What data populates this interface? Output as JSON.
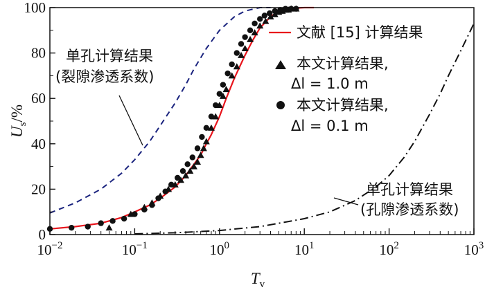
{
  "chart_data": {
    "type": "line",
    "xscale": "log",
    "xlim": [
      0.01,
      1000
    ],
    "ylim": [
      0,
      100
    ],
    "grid": false,
    "legend_position": "upper-right",
    "x_ticks": [
      {
        "value": 0.01,
        "base": "10",
        "exp": "−2"
      },
      {
        "value": 0.1,
        "base": "10",
        "exp": "−1"
      },
      {
        "value": 1,
        "base": "10",
        "exp": "0"
      },
      {
        "value": 10,
        "base": "10",
        "exp": "1"
      },
      {
        "value": 100,
        "base": "10",
        "exp": "2"
      },
      {
        "value": 1000,
        "base": "10",
        "exp": "3"
      }
    ],
    "y_ticks": [
      0,
      20,
      40,
      60,
      80,
      100
    ],
    "xlabel": {
      "main": "T",
      "sub": "v"
    },
    "ylabel": {
      "main": "U",
      "sub": "s",
      "suffix": "/%"
    },
    "series": [
      {
        "name": "文献 [15] 计算结果",
        "style": "solid",
        "color": "#e8141c",
        "marker": "none",
        "x": [
          0.01,
          0.02,
          0.04,
          0.07,
          0.1,
          0.15,
          0.2,
          0.3,
          0.4,
          0.5,
          0.6,
          0.7,
          0.8,
          1.0,
          1.2,
          1.5,
          2.0,
          2.5,
          3.0,
          4.0,
          5.0,
          7.0,
          10.0,
          13.0
        ],
        "y": [
          2.5,
          3.5,
          5.0,
          7.5,
          10.0,
          13.0,
          16.0,
          21.0,
          26.0,
          31.0,
          35.0,
          40.0,
          44.0,
          52.0,
          60.0,
          69.0,
          79.0,
          86.0,
          91.0,
          96.0,
          98.5,
          99.7,
          100,
          100
        ]
      },
      {
        "name": "本文计算结果,",
        "name_line2": "Δl = 1.0 m",
        "style": "none",
        "color": "#111111",
        "marker": "triangle",
        "x": [
          0.05,
          0.09,
          0.13,
          0.16,
          0.2,
          0.25,
          0.3,
          0.35,
          0.4,
          0.45,
          0.5,
          0.55,
          0.6,
          0.65,
          0.7,
          0.8,
          0.9,
          1.0,
          1.1,
          1.2,
          1.4,
          1.6,
          1.8,
          2.0,
          2.3,
          2.6,
          3.0,
          3.5,
          4.0,
          4.5,
          5.0,
          5.5,
          6.0,
          6.5,
          7.0,
          8.0
        ],
        "y": [
          3,
          9,
          12,
          14,
          17,
          20,
          22,
          24,
          26,
          28,
          30,
          32,
          35,
          38,
          41,
          47,
          52,
          57,
          61,
          64,
          70,
          74,
          79,
          82,
          86,
          89,
          92,
          94,
          96,
          97,
          98,
          98.5,
          99,
          99,
          99.5,
          99.5
        ]
      },
      {
        "name": "本文计算结果,",
        "name_line2": "Δl = 0.1 m",
        "style": "none",
        "color": "#111111",
        "marker": "circle",
        "x": [
          0.01,
          0.018,
          0.028,
          0.04,
          0.055,
          0.075,
          0.1,
          0.13,
          0.16,
          0.19,
          0.23,
          0.27,
          0.32,
          0.37,
          0.42,
          0.48,
          0.55,
          0.62,
          0.7,
          0.8,
          0.9,
          1.0,
          1.1,
          1.25,
          1.4,
          1.6,
          1.8,
          2.0,
          2.3,
          2.6,
          3.0,
          3.4,
          3.9,
          4.5,
          5.2,
          6.0,
          7.0,
          8.0
        ],
        "y": [
          2.5,
          3,
          3.5,
          5,
          6,
          7,
          9,
          11,
          13,
          16,
          19,
          22,
          25,
          28,
          31,
          34,
          38,
          43,
          47,
          52,
          57,
          62,
          66,
          71,
          75,
          80,
          84,
          87,
          90,
          93,
          95,
          96.5,
          97.5,
          98.5,
          99,
          99.5,
          99.5,
          99.5
        ]
      },
      {
        "name": "单孔计算结果 (裂隙渗透系数)",
        "style": "dashed",
        "color": "#1a237e",
        "marker": "none",
        "x": [
          0.01,
          0.02,
          0.04,
          0.07,
          0.1,
          0.15,
          0.2,
          0.3,
          0.4,
          0.5,
          0.7,
          1.0,
          1.5,
          2.0,
          3.0,
          4.0
        ],
        "y": [
          9.5,
          14,
          20,
          27,
          33,
          41,
          48,
          58,
          66,
          73,
          82,
          90,
          96,
          98.5,
          100,
          100
        ]
      },
      {
        "name": "单孔计算结果 (孔隙渗透系数)",
        "style": "dashdot",
        "color": "#111111",
        "marker": "none",
        "x": [
          0.1,
          0.3,
          1,
          3,
          10,
          20,
          40,
          70,
          100,
          150,
          200,
          300,
          400,
          500,
          700,
          1000
        ],
        "y": [
          0.3,
          0.8,
          1.8,
          3.5,
          7,
          10,
          15,
          21,
          26,
          34,
          41,
          53,
          62,
          70,
          81,
          93
        ]
      }
    ],
    "legend": [
      {
        "label": "文献 [15] 计算结果",
        "symbol": "line",
        "color": "#e8141c"
      },
      {
        "label": "本文计算结果,",
        "label2": "Δl = 1.0 m",
        "symbol": "triangle",
        "color": "#111111"
      },
      {
        "label": "本文计算结果,",
        "label2": "Δl = 0.1 m",
        "symbol": "circle",
        "color": "#111111"
      }
    ],
    "annotations": [
      {
        "line1": "单孔计算结果",
        "line2": "(裂隙渗透系数)",
        "series": 3
      },
      {
        "line1": "单孔计算结果",
        "line2": "(孔隙渗透系数)",
        "series": 4
      }
    ]
  }
}
